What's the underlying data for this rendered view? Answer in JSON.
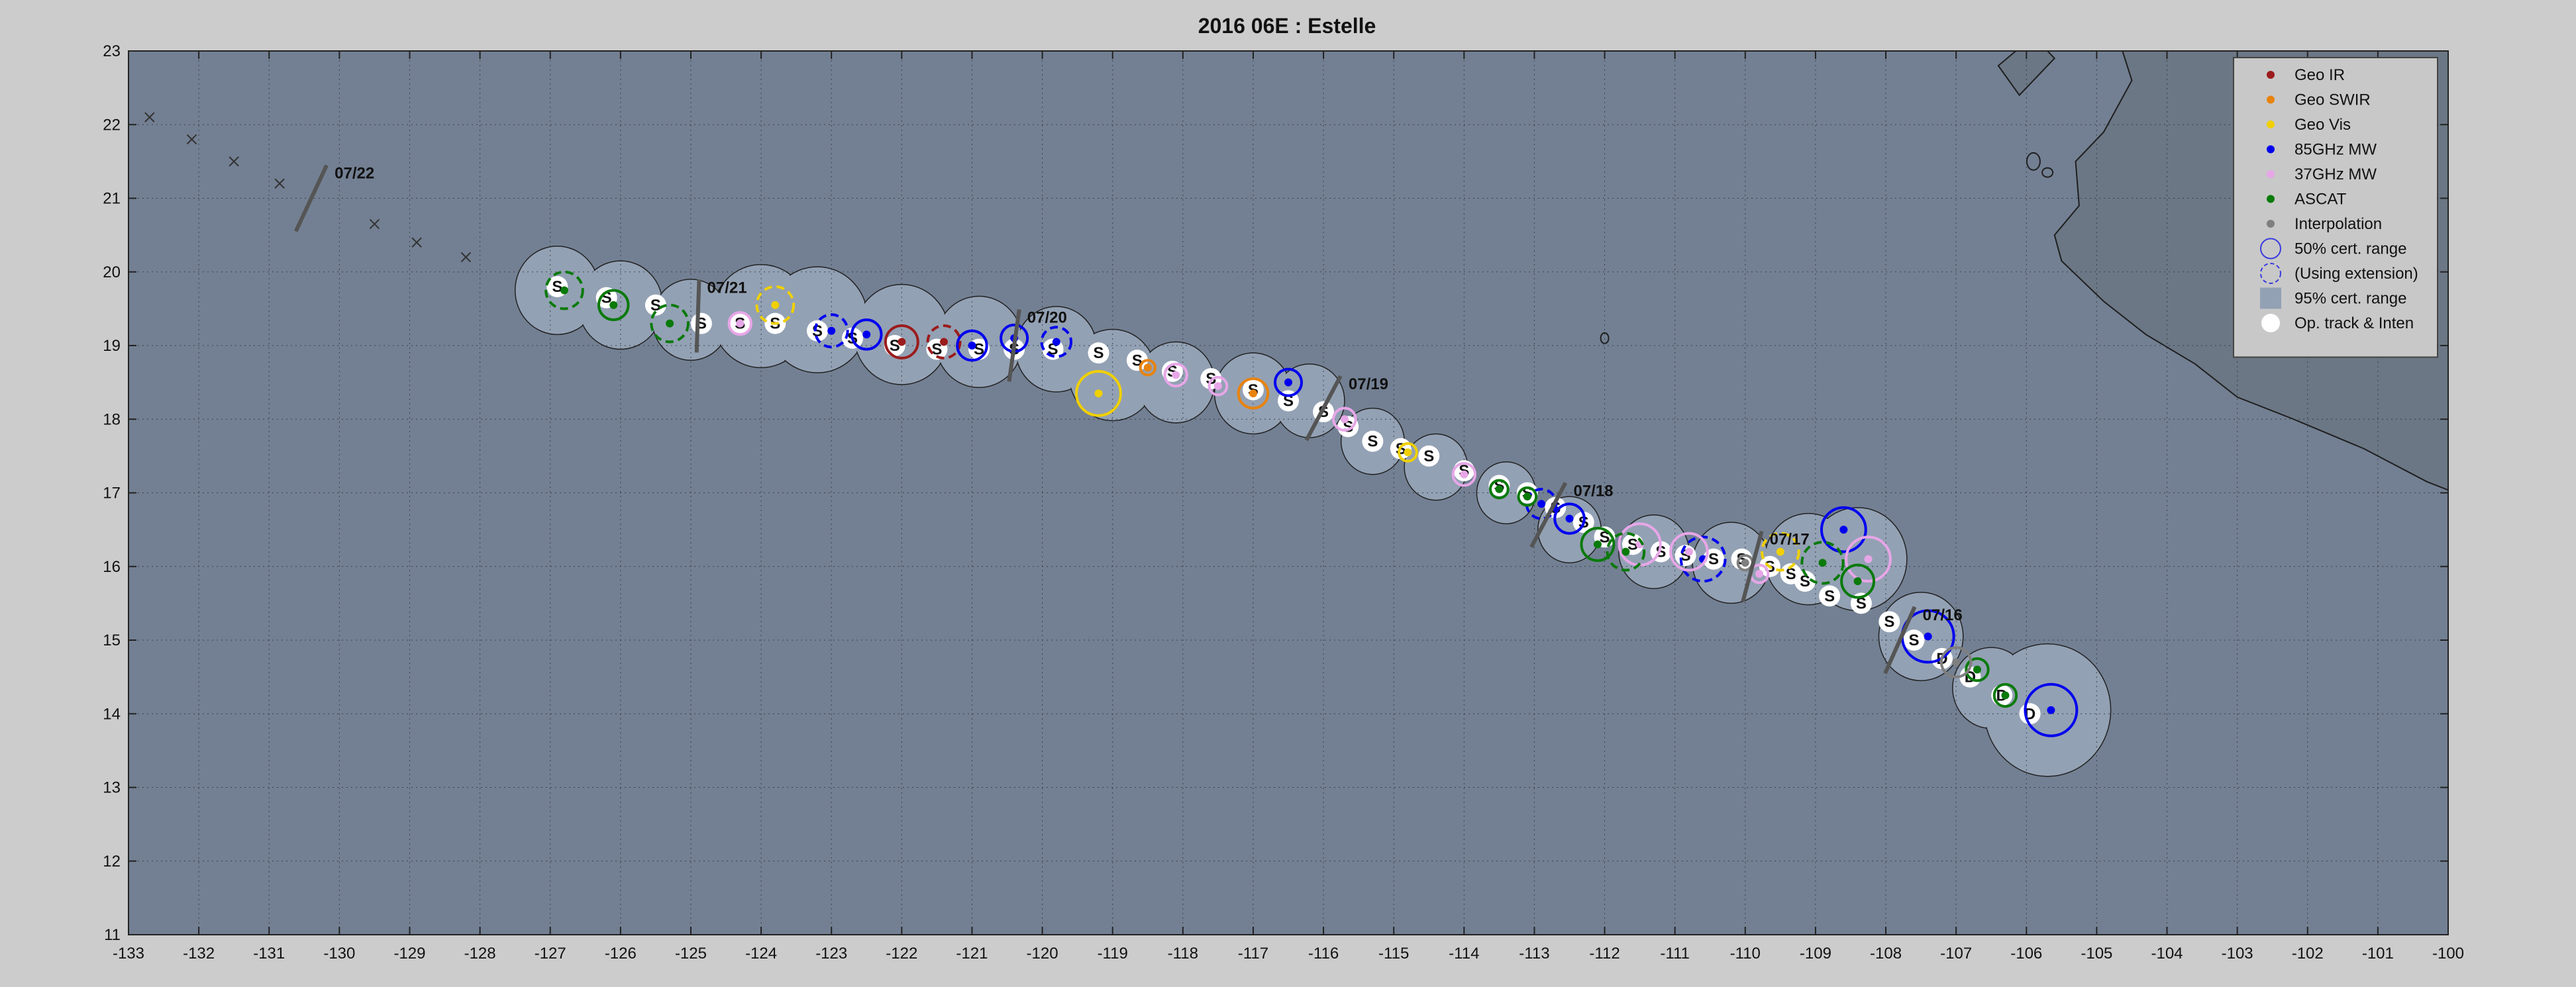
{
  "chart_data": {
    "type": "scatter",
    "title": "2016  06E :  Estelle",
    "xlabel": "",
    "ylabel": "",
    "xlim": [
      -133,
      -100
    ],
    "ylim": [
      11,
      23
    ],
    "x_ticks": [
      -133,
      -132,
      -131,
      -130,
      -129,
      -128,
      -127,
      -126,
      -125,
      -124,
      -123,
      -122,
      -121,
      -120,
      -119,
      -118,
      -117,
      -116,
      -115,
      -114,
      -113,
      -112,
      -111,
      -110,
      -109,
      -108,
      -107,
      -106,
      -105,
      -104,
      -103,
      -102,
      -101,
      -100
    ],
    "y_ticks": [
      11,
      12,
      13,
      14,
      15,
      16,
      17,
      18,
      19,
      20,
      21,
      22,
      23
    ],
    "grid": true,
    "legend_position": "top-right",
    "colors": {
      "plot_background": "#738093",
      "cert_95_fill": "#93a1b4",
      "land": "#6b7785",
      "geo_ir": "#9b1c1c",
      "geo_swir": "#e8830e",
      "geo_vis": "#f0d000",
      "mw_85": "#0000ee",
      "mw_37": "#e7a6e7",
      "ascat": "#0a7a0a",
      "interpolation": "#7f7f7f",
      "op_track": "#ffffff"
    },
    "legend": [
      {
        "label": "Geo IR",
        "color": "#9b1c1c",
        "marker": "dot"
      },
      {
        "label": "Geo SWIR",
        "color": "#e8830e",
        "marker": "dot"
      },
      {
        "label": "Geo Vis",
        "color": "#f0d000",
        "marker": "dot"
      },
      {
        "label": "85GHz MW",
        "color": "#0000ee",
        "marker": "dot"
      },
      {
        "label": "37GHz MW",
        "color": "#e7a6e7",
        "marker": "dot"
      },
      {
        "label": "ASCAT",
        "color": "#0a7a0a",
        "marker": "dot"
      },
      {
        "label": "Interpolation",
        "color": "#7f7f7f",
        "marker": "dot"
      },
      {
        "label": "50% cert. range",
        "color": "#3a3ae0",
        "marker": "circle"
      },
      {
        "label": "(Using extension)",
        "color": "#3a3ae0",
        "marker": "dashed-circle"
      },
      {
        "label": "95% cert. range",
        "color": "#93a1b4",
        "marker": "square"
      },
      {
        "label": "Op. track & Inten",
        "color": "#ffffff",
        "marker": "filled-circle"
      }
    ],
    "certainty_95_envelope": [
      {
        "x": -126.9,
        "y": 19.75,
        "r": 0.6
      },
      {
        "x": -126.0,
        "y": 19.55,
        "r": 0.6
      },
      {
        "x": -125.0,
        "y": 19.35,
        "r": 0.55
      },
      {
        "x": -124.0,
        "y": 19.4,
        "r": 0.7
      },
      {
        "x": -123.2,
        "y": 19.35,
        "r": 0.72
      },
      {
        "x": -122.0,
        "y": 19.15,
        "r": 0.68
      },
      {
        "x": -120.9,
        "y": 19.05,
        "r": 0.62
      },
      {
        "x": -119.8,
        "y": 18.95,
        "r": 0.58
      },
      {
        "x": -119.0,
        "y": 18.6,
        "r": 0.62
      },
      {
        "x": -118.1,
        "y": 18.5,
        "r": 0.55
      },
      {
        "x": -117.0,
        "y": 18.35,
        "r": 0.55
      },
      {
        "x": -116.2,
        "y": 18.25,
        "r": 0.5
      },
      {
        "x": -115.3,
        "y": 17.7,
        "r": 0.45
      },
      {
        "x": -114.4,
        "y": 17.35,
        "r": 0.45
      },
      {
        "x": -113.4,
        "y": 17.0,
        "r": 0.42
      },
      {
        "x": -112.5,
        "y": 16.5,
        "r": 0.45
      },
      {
        "x": -111.3,
        "y": 16.2,
        "r": 0.5
      },
      {
        "x": -110.2,
        "y": 16.05,
        "r": 0.55
      },
      {
        "x": -109.1,
        "y": 16.1,
        "r": 0.62
      },
      {
        "x": -108.4,
        "y": 16.1,
        "r": 0.7
      },
      {
        "x": -107.5,
        "y": 15.05,
        "r": 0.6
      },
      {
        "x": -106.5,
        "y": 14.35,
        "r": 0.55
      },
      {
        "x": -105.7,
        "y": 14.05,
        "r": 0.9
      }
    ],
    "series": [
      {
        "name": "Op. track & Inten",
        "color": "#ffffff",
        "points": [
          {
            "x": -126.9,
            "y": 19.8,
            "t": "S"
          },
          {
            "x": -126.2,
            "y": 19.65,
            "t": "S"
          },
          {
            "x": -125.5,
            "y": 19.55,
            "t": "S"
          },
          {
            "x": -124.85,
            "y": 19.3,
            "t": "S"
          },
          {
            "x": -124.3,
            "y": 19.3,
            "t": "S"
          },
          {
            "x": -123.8,
            "y": 19.3,
            "t": "S"
          },
          {
            "x": -123.2,
            "y": 19.2,
            "t": "S"
          },
          {
            "x": -122.7,
            "y": 19.1,
            "t": "S"
          },
          {
            "x": -122.1,
            "y": 19.0,
            "t": "S"
          },
          {
            "x": -121.5,
            "y": 18.95,
            "t": "S"
          },
          {
            "x": -120.9,
            "y": 18.95,
            "t": "S"
          },
          {
            "x": -120.4,
            "y": 18.95,
            "t": "S"
          },
          {
            "x": -119.85,
            "y": 18.95,
            "t": "S"
          },
          {
            "x": -119.2,
            "y": 18.9,
            "t": "S"
          },
          {
            "x": -118.65,
            "y": 18.8,
            "t": "S"
          },
          {
            "x": -118.15,
            "y": 18.65,
            "t": "S"
          },
          {
            "x": -117.6,
            "y": 18.55,
            "t": "S"
          },
          {
            "x": -117.0,
            "y": 18.4,
            "t": "S"
          },
          {
            "x": -116.5,
            "y": 18.25,
            "t": "S"
          },
          {
            "x": -116.0,
            "y": 18.1,
            "t": "S"
          },
          {
            "x": -115.65,
            "y": 17.9,
            "t": "S"
          },
          {
            "x": -115.3,
            "y": 17.7,
            "t": "S"
          },
          {
            "x": -114.9,
            "y": 17.6,
            "t": "S"
          },
          {
            "x": -114.5,
            "y": 17.5,
            "t": "S"
          },
          {
            "x": -114.0,
            "y": 17.3,
            "t": "S"
          },
          {
            "x": -113.5,
            "y": 17.1,
            "t": "S"
          },
          {
            "x": -113.1,
            "y": 17.0,
            "t": "S"
          },
          {
            "x": -112.7,
            "y": 16.8,
            "t": "S"
          },
          {
            "x": -112.3,
            "y": 16.6,
            "t": "S"
          },
          {
            "x": -112.0,
            "y": 16.4,
            "t": "S"
          },
          {
            "x": -111.6,
            "y": 16.3,
            "t": "S"
          },
          {
            "x": -111.2,
            "y": 16.2,
            "t": "S"
          },
          {
            "x": -110.85,
            "y": 16.15,
            "t": "S"
          },
          {
            "x": -110.45,
            "y": 16.1,
            "t": "S"
          },
          {
            "x": -110.05,
            "y": 16.1,
            "t": "S"
          },
          {
            "x": -109.65,
            "y": 16.0,
            "t": "S"
          },
          {
            "x": -109.35,
            "y": 15.9,
            "t": "S"
          },
          {
            "x": -109.15,
            "y": 15.8,
            "t": "S"
          },
          {
            "x": -108.8,
            "y": 15.6,
            "t": "S"
          },
          {
            "x": -108.35,
            "y": 15.5,
            "t": "S"
          },
          {
            "x": -107.95,
            "y": 15.25,
            "t": "S"
          },
          {
            "x": -107.6,
            "y": 15.0,
            "t": "S"
          },
          {
            "x": -107.2,
            "y": 14.75,
            "t": "D"
          },
          {
            "x": -106.8,
            "y": 14.5,
            "t": "D"
          },
          {
            "x": -106.35,
            "y": 14.25,
            "t": "D"
          },
          {
            "x": -105.95,
            "y": 14.0,
            "t": "D"
          }
        ]
      },
      {
        "name": "Geo IR",
        "color": "#9b1c1c",
        "points": [
          {
            "x": -122.0,
            "y": 19.05,
            "r": 0.22,
            "dashed": false
          },
          {
            "x": -121.4,
            "y": 19.05,
            "r": 0.22,
            "dashed": true
          }
        ]
      },
      {
        "name": "Geo SWIR",
        "color": "#e8830e",
        "points": [
          {
            "x": -117.0,
            "y": 18.35,
            "r": 0.2,
            "dashed": false
          },
          {
            "x": -118.5,
            "y": 18.7,
            "r": 0.1,
            "dashed": false
          }
        ]
      },
      {
        "name": "Geo Vis",
        "color": "#f0d000",
        "points": [
          {
            "x": -119.2,
            "y": 18.35,
            "r": 0.3,
            "dashed": false
          },
          {
            "x": -123.8,
            "y": 19.55,
            "r": 0.25,
            "dashed": true
          },
          {
            "x": -114.8,
            "y": 17.55,
            "r": 0.12,
            "dashed": false
          },
          {
            "x": -109.5,
            "y": 16.2,
            "r": 0.25,
            "dashed": true
          }
        ]
      },
      {
        "name": "85GHz MW",
        "color": "#0000ee",
        "points": [
          {
            "x": -123.0,
            "y": 19.2,
            "r": 0.22,
            "dashed": true
          },
          {
            "x": -122.5,
            "y": 19.15,
            "r": 0.2,
            "dashed": false
          },
          {
            "x": -121.0,
            "y": 19.0,
            "r": 0.2,
            "dashed": false
          },
          {
            "x": -120.4,
            "y": 19.1,
            "r": 0.18,
            "dashed": false
          },
          {
            "x": -119.8,
            "y": 19.05,
            "r": 0.2,
            "dashed": true
          },
          {
            "x": -116.5,
            "y": 18.5,
            "r": 0.18,
            "dashed": false
          },
          {
            "x": -112.9,
            "y": 16.85,
            "r": 0.2,
            "dashed": true
          },
          {
            "x": -112.5,
            "y": 16.65,
            "r": 0.2,
            "dashed": false
          },
          {
            "x": -110.6,
            "y": 16.1,
            "r": 0.3,
            "dashed": true
          },
          {
            "x": -108.6,
            "y": 16.5,
            "r": 0.3,
            "dashed": false
          },
          {
            "x": -107.4,
            "y": 15.05,
            "r": 0.35,
            "dashed": false
          },
          {
            "x": -105.65,
            "y": 14.05,
            "r": 0.35,
            "dashed": false
          }
        ]
      },
      {
        "name": "37GHz MW",
        "color": "#e7a6e7",
        "points": [
          {
            "x": -124.3,
            "y": 19.3,
            "r": 0.15,
            "dashed": false
          },
          {
            "x": -118.1,
            "y": 18.6,
            "r": 0.15,
            "dashed": false
          },
          {
            "x": -117.5,
            "y": 18.45,
            "r": 0.12,
            "dashed": false
          },
          {
            "x": -115.7,
            "y": 18.0,
            "r": 0.15,
            "dashed": false
          },
          {
            "x": -114.0,
            "y": 17.25,
            "r": 0.15,
            "dashed": false
          },
          {
            "x": -111.5,
            "y": 16.3,
            "r": 0.28,
            "dashed": false
          },
          {
            "x": -110.8,
            "y": 16.2,
            "r": 0.25,
            "dashed": false
          },
          {
            "x": -108.25,
            "y": 16.1,
            "r": 0.3,
            "dashed": false
          },
          {
            "x": -109.8,
            "y": 15.9,
            "r": 0.12,
            "dashed": false
          }
        ]
      },
      {
        "name": "ASCAT",
        "color": "#0a7a0a",
        "points": [
          {
            "x": -126.8,
            "y": 19.75,
            "r": 0.25,
            "dashed": true
          },
          {
            "x": -126.1,
            "y": 19.55,
            "r": 0.2,
            "dashed": false
          },
          {
            "x": -125.3,
            "y": 19.3,
            "r": 0.25,
            "dashed": true
          },
          {
            "x": -113.5,
            "y": 17.05,
            "r": 0.12,
            "dashed": false
          },
          {
            "x": -113.1,
            "y": 16.95,
            "r": 0.12,
            "dashed": false
          },
          {
            "x": -112.1,
            "y": 16.3,
            "r": 0.22,
            "dashed": false
          },
          {
            "x": -111.7,
            "y": 16.2,
            "r": 0.25,
            "dashed": true
          },
          {
            "x": -108.9,
            "y": 16.05,
            "r": 0.28,
            "dashed": true
          },
          {
            "x": -108.4,
            "y": 15.8,
            "r": 0.22,
            "dashed": false
          },
          {
            "x": -106.7,
            "y": 14.6,
            "r": 0.15,
            "dashed": false
          },
          {
            "x": -106.3,
            "y": 14.25,
            "r": 0.15,
            "dashed": false
          }
        ]
      },
      {
        "name": "Interpolation",
        "color": "#7f7f7f",
        "points": [
          {
            "x": -107.0,
            "y": 14.7,
            "r": 0.2,
            "dashed": false
          },
          {
            "x": -110.0,
            "y": 16.05,
            "r": 0.1,
            "dashed": false
          }
        ]
      }
    ],
    "date_marks": [
      {
        "label": "07/22",
        "x": -130.4,
        "y": 21.0,
        "angle": -65
      },
      {
        "label": "07/21",
        "x": -124.9,
        "y": 19.4,
        "angle": -88
      },
      {
        "label": "07/20",
        "x": -120.4,
        "y": 19.0,
        "angle": -82
      },
      {
        "label": "07/19",
        "x": -116.0,
        "y": 18.15,
        "angle": -62
      },
      {
        "label": "07/18",
        "x": -112.8,
        "y": 16.7,
        "angle": -62
      },
      {
        "label": "07/17",
        "x": -109.9,
        "y": 16.0,
        "angle": -75
      },
      {
        "label": "07/16",
        "x": -107.8,
        "y": 15.0,
        "angle": -66
      }
    ],
    "forecast_marks": [
      {
        "x": -132.1,
        "y": 21.8
      },
      {
        "x": -131.5,
        "y": 21.5
      },
      {
        "x": -130.85,
        "y": 21.2
      },
      {
        "x": -129.5,
        "y": 20.65
      },
      {
        "x": -128.9,
        "y": 20.4
      },
      {
        "x": -128.2,
        "y": 20.2
      },
      {
        "x": -132.7,
        "y": 22.1
      }
    ]
  }
}
